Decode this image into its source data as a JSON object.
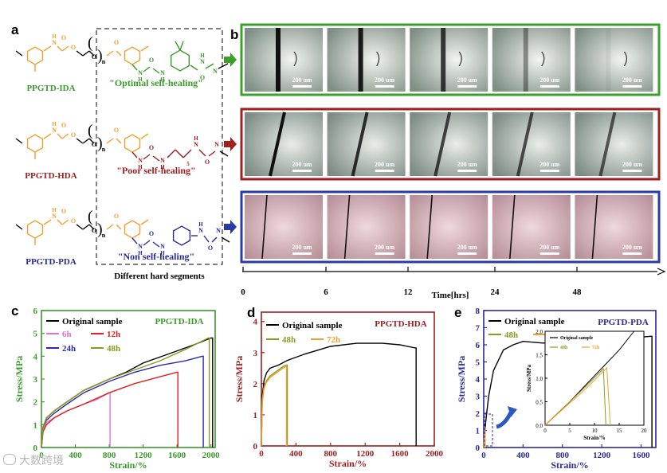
{
  "panels": {
    "a": "a",
    "b": "b",
    "c": "c",
    "d": "d",
    "e": "e"
  },
  "colors": {
    "green": "#3a9a2a",
    "red": "#9a1f1f",
    "blue": "#2a2a9a",
    "orange": "#f0a030",
    "black": "#000000",
    "pink": "#e070d0",
    "olive": "#8a9a20"
  },
  "panel_a": {
    "rows": [
      {
        "name": "PPGTD-IDA",
        "color": "#3a9a2a",
        "note": "\"Optimal self-healing\""
      },
      {
        "name": "PPGTD-HDA",
        "color": "#9a1f1f",
        "note": "\"Poor self-healing\""
      },
      {
        "name": "PPGTD-PDA",
        "color": "#2a2a9a",
        "note": "\"Non self-healing\""
      }
    ],
    "caption": "Different hard segments",
    "atoms": {
      "H": "H",
      "N": "N",
      "O": "O",
      "n": "n",
      "five": "5"
    }
  },
  "panel_b": {
    "scale_label": "200 um",
    "timeline_label": "Time[hrs]",
    "time_ticks": [
      "0",
      "6",
      "12",
      "24",
      "48"
    ],
    "row_border_colors": [
      "#3aa02a",
      "#a01f1f",
      "#2a3aaa"
    ]
  },
  "chart_data": [
    {
      "type": "line",
      "panel": "c",
      "title": "PPGTD-IDA",
      "xlabel": "Strain/%",
      "ylabel": "Stress/MPa",
      "xlim": [
        0,
        2050
      ],
      "ylim": [
        0,
        6
      ],
      "xticks": [
        0,
        400,
        800,
        1200,
        1600,
        2000
      ],
      "yticks": [
        0,
        1,
        2,
        3,
        4,
        5,
        6
      ],
      "legend_placement": "top-left",
      "series": [
        {
          "name": "Original sample",
          "color": "#000000",
          "x": [
            0,
            20,
            60,
            150,
            300,
            500,
            800,
            1000,
            1200,
            1500,
            1800,
            2000
          ],
          "y": [
            0,
            0.9,
            1.3,
            1.6,
            2.0,
            2.5,
            3.0,
            3.3,
            3.7,
            4.1,
            4.5,
            4.8
          ],
          "break_x": 2020
        },
        {
          "name": "6h",
          "color": "#e070d0",
          "x": [
            0,
            20,
            60,
            150,
            300,
            500,
            650,
            800
          ],
          "y": [
            0,
            0.8,
            1.1,
            1.3,
            1.6,
            1.9,
            2.1,
            2.4
          ],
          "break_x": 810
        },
        {
          "name": "12h",
          "color": "#e02020",
          "x": [
            0,
            20,
            60,
            150,
            300,
            500,
            800,
            1100,
            1400,
            1600
          ],
          "y": [
            0,
            0.7,
            1.0,
            1.3,
            1.6,
            1.9,
            2.4,
            2.8,
            3.1,
            3.3
          ],
          "break_x": 1610
        },
        {
          "name": "24h",
          "color": "#2a2ab0",
          "x": [
            0,
            20,
            60,
            150,
            300,
            500,
            800,
            1100,
            1400,
            1700,
            1900
          ],
          "y": [
            0,
            0.9,
            1.2,
            1.5,
            1.9,
            2.4,
            2.9,
            3.3,
            3.6,
            3.8,
            4.0
          ],
          "break_x": 1910
        },
        {
          "name": "48h",
          "color": "#8a9a20",
          "x": [
            0,
            20,
            60,
            150,
            300,
            500,
            800,
            1100,
            1400,
            1700,
            1970
          ],
          "y": [
            0,
            0.9,
            1.3,
            1.6,
            2.0,
            2.5,
            3.0,
            3.4,
            3.8,
            4.3,
            4.8
          ],
          "break_x": 1980
        }
      ]
    },
    {
      "type": "line",
      "panel": "d",
      "title": "PPGTD-HDA",
      "xlabel": "Strain/%",
      "ylabel": "Stress/MPa",
      "xlim": [
        0,
        2000
      ],
      "ylim": [
        0,
        4.3
      ],
      "xticks": [
        0,
        400,
        800,
        1200,
        1600,
        2000
      ],
      "yticks": [
        0,
        1,
        2,
        3,
        4
      ],
      "legend_placement": "top-left",
      "series": [
        {
          "name": "Original sample",
          "color": "#000000",
          "x": [
            0,
            10,
            30,
            60,
            100,
            200,
            300,
            500,
            800,
            1100,
            1400,
            1600,
            1780
          ],
          "y": [
            0,
            1.6,
            2.1,
            2.35,
            2.5,
            2.6,
            2.75,
            2.95,
            3.2,
            3.3,
            3.3,
            3.25,
            3.15
          ],
          "break_x": 1790
        },
        {
          "name": "48h",
          "color": "#8a9a20",
          "x": [
            0,
            10,
            30,
            60,
            100,
            150,
            200,
            250,
            290
          ],
          "y": [
            0,
            1.5,
            1.9,
            2.1,
            2.25,
            2.35,
            2.45,
            2.55,
            2.6
          ],
          "break_x": 300
        },
        {
          "name": "72h",
          "color": "#f0a030",
          "x": [
            0,
            10,
            30,
            60,
            100,
            150,
            200,
            250,
            280
          ],
          "y": [
            0,
            1.4,
            1.85,
            2.05,
            2.2,
            2.3,
            2.4,
            2.5,
            2.55
          ],
          "break_x": 290
        }
      ]
    },
    {
      "type": "line",
      "panel": "e",
      "title": "PPGTD-PDA",
      "xlabel": "Strain/%",
      "ylabel": "Stress/MPa",
      "xlim": [
        0,
        1750
      ],
      "ylim": [
        0,
        8
      ],
      "xticks": [
        0,
        400,
        800,
        1200,
        1600
      ],
      "yticks": [
        0,
        1,
        2,
        3,
        4,
        5,
        6,
        7,
        8
      ],
      "legend_placement": "top-left",
      "series": [
        {
          "name": "Original sample",
          "color": "#000000",
          "x": [
            0,
            20,
            50,
            100,
            200,
            300,
            400,
            600,
            800,
            1000,
            1200,
            1400,
            1600,
            1700
          ],
          "y": [
            0,
            1.5,
            3.0,
            4.5,
            5.7,
            6.0,
            6.2,
            6.1,
            6.15,
            6.2,
            6.3,
            6.35,
            6.45,
            6.5
          ],
          "break_x": 1710
        },
        {
          "name": "48h",
          "color": "#8a9a20",
          "x": [
            0,
            4,
            8,
            12
          ],
          "y": [
            0,
            0.4,
            0.8,
            1.2
          ],
          "break_x": 12.5
        },
        {
          "name": "72h",
          "color": "#f0a030",
          "x": [
            0,
            4,
            8,
            12.6
          ],
          "y": [
            0,
            0.35,
            0.75,
            1.2
          ],
          "break_x": 13
        }
      ],
      "inset": {
        "xlabel": "Strain/%",
        "ylabel": "Stress/MPa",
        "xlim": [
          0,
          20
        ],
        "ylim": [
          0,
          2.0
        ],
        "xticks": [
          0,
          5,
          10,
          15,
          20
        ],
        "yticks": [
          "0.0",
          "0.5",
          "1.0",
          "1.5",
          "2.0"
        ],
        "series": [
          {
            "name": "Original sample",
            "color": "#000000",
            "x": [
              0,
              5,
              10,
              15,
              18
            ],
            "y": [
              0,
              0.5,
              1.05,
              1.6,
              2.0
            ]
          },
          {
            "name": "48h",
            "color": "#8a9a20",
            "x": [
              0,
              4,
              8,
              11.8
            ],
            "y": [
              0,
              0.4,
              0.8,
              1.2
            ],
            "break_x": 12.3
          },
          {
            "name": "72h",
            "color": "#f0a030",
            "x": [
              0,
              4,
              8,
              12.5
            ],
            "y": [
              0,
              0.38,
              0.75,
              1.22
            ],
            "break_x": 13.2
          }
        ]
      }
    }
  ],
  "watermark": "大数跨境"
}
